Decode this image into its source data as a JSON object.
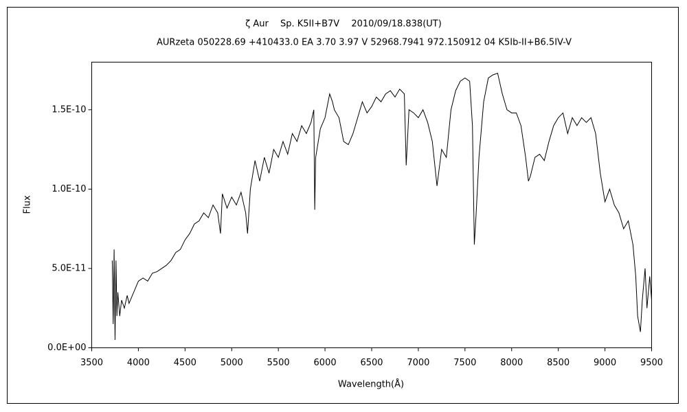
{
  "chart_data": {
    "type": "line",
    "title": "ζ Aur　 Sp. K5II+B7V　 2010/09/18.838(UT)",
    "subtitle": "AURzeta 050228.69 +410433.0 EA 3.70 3.97 V 52968.7941 972.150912 04 K5Ib-II+B6.5IV-V",
    "x_label": "Wavelength(Å)",
    "y_label": "Flux",
    "x": [
      3720,
      3730,
      3740,
      3750,
      3760,
      3770,
      3780,
      3800,
      3820,
      3850,
      3880,
      3900,
      3950,
      4000,
      4050,
      4100,
      4150,
      4200,
      4250,
      4300,
      4350,
      4400,
      4450,
      4500,
      4550,
      4600,
      4650,
      4700,
      4750,
      4800,
      4850,
      4880,
      4900,
      4950,
      5000,
      5050,
      5100,
      5150,
      5170,
      5200,
      5250,
      5300,
      5350,
      5400,
      5450,
      5500,
      5550,
      5600,
      5650,
      5700,
      5750,
      5800,
      5850,
      5880,
      5890,
      5900,
      5950,
      6000,
      6050,
      6080,
      6100,
      6150,
      6200,
      6250,
      6300,
      6350,
      6400,
      6450,
      6500,
      6550,
      6600,
      6650,
      6700,
      6750,
      6800,
      6850,
      6870,
      6900,
      6950,
      7000,
      7050,
      7100,
      7150,
      7200,
      7250,
      7300,
      7350,
      7400,
      7450,
      7500,
      7550,
      7580,
      7600,
      7620,
      7650,
      7700,
      7750,
      7800,
      7850,
      7900,
      7950,
      8000,
      8050,
      8100,
      8150,
      8180,
      8200,
      8250,
      8300,
      8350,
      8400,
      8450,
      8500,
      8550,
      8600,
      8650,
      8700,
      8750,
      8800,
      8850,
      8900,
      8950,
      9000,
      9050,
      9100,
      9150,
      9200,
      9250,
      9300,
      9330,
      9350,
      9380,
      9400,
      9430,
      9450,
      9480,
      9500
    ],
    "series": [
      {
        "color": "#000000",
        "values": [
          5.5e-11,
          1.5e-11,
          6.2e-11,
          5e-12,
          5.5e-11,
          2e-11,
          3.5e-11,
          2e-11,
          3e-11,
          2.5e-11,
          3.3e-11,
          2.8e-11,
          3.5e-11,
          4.2e-11,
          4.4e-11,
          4.2e-11,
          4.7e-11,
          4.8e-11,
          5e-11,
          5.2e-11,
          5.5e-11,
          6e-11,
          6.2e-11,
          6.8e-11,
          7.2e-11,
          7.8e-11,
          8e-11,
          8.5e-11,
          8.2e-11,
          9e-11,
          8.5e-11,
          7.2e-11,
          9.7e-11,
          8.8e-11,
          9.5e-11,
          9e-11,
          9.8e-11,
          8.5e-11,
          7.2e-11,
          1e-10,
          1.18e-10,
          1.05e-10,
          1.2e-10,
          1.1e-10,
          1.25e-10,
          1.2e-10,
          1.3e-10,
          1.22e-10,
          1.35e-10,
          1.3e-10,
          1.4e-10,
          1.35e-10,
          1.42e-10,
          1.5e-10,
          8.7e-11,
          1.2e-10,
          1.38e-10,
          1.45e-10,
          1.6e-10,
          1.55e-10,
          1.5e-10,
          1.45e-10,
          1.3e-10,
          1.28e-10,
          1.35e-10,
          1.45e-10,
          1.55e-10,
          1.48e-10,
          1.52e-10,
          1.58e-10,
          1.55e-10,
          1.6e-10,
          1.62e-10,
          1.58e-10,
          1.63e-10,
          1.6e-10,
          1.15e-10,
          1.5e-10,
          1.48e-10,
          1.45e-10,
          1.5e-10,
          1.42e-10,
          1.3e-10,
          1.02e-10,
          1.25e-10,
          1.2e-10,
          1.5e-10,
          1.62e-10,
          1.68e-10,
          1.7e-10,
          1.68e-10,
          1.4e-10,
          6.5e-11,
          8.5e-11,
          1.2e-10,
          1.55e-10,
          1.7e-10,
          1.72e-10,
          1.73e-10,
          1.6e-10,
          1.5e-10,
          1.48e-10,
          1.48e-10,
          1.4e-10,
          1.2e-10,
          1.05e-10,
          1.08e-10,
          1.2e-10,
          1.22e-10,
          1.18e-10,
          1.3e-10,
          1.4e-10,
          1.45e-10,
          1.48e-10,
          1.35e-10,
          1.45e-10,
          1.4e-10,
          1.45e-10,
          1.42e-10,
          1.45e-10,
          1.35e-10,
          1.1e-10,
          9.2e-11,
          1e-10,
          9e-11,
          8.5e-11,
          7.5e-11,
          8e-11,
          6.5e-11,
          4.5e-11,
          2e-11,
          1e-11,
          3e-11,
          5e-11,
          2.5e-11,
          4.5e-11,
          3e-11
        ]
      }
    ],
    "xlim": [
      3500,
      9500
    ],
    "xticks": [
      3500,
      4000,
      4500,
      5000,
      5500,
      6000,
      6500,
      7000,
      7500,
      8000,
      8500,
      9000,
      9500
    ],
    "ylim": [
      0,
      1.8e-10
    ],
    "yticks": [
      {
        "value": 0,
        "label": "0.0E+00"
      },
      {
        "value": 5e-11,
        "label": "5.0E-11"
      },
      {
        "value": 1e-10,
        "label": "1.0E-10"
      },
      {
        "value": 1.5e-10,
        "label": "1.5E-10"
      }
    ],
    "grid": false
  }
}
